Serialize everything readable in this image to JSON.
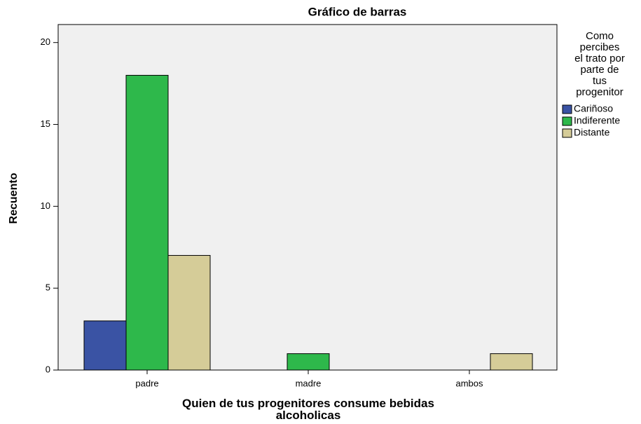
{
  "chart_data": {
    "type": "bar",
    "title": "Gráfico de barras",
    "x_label": "Quien de tus progenitores consume bebidas alcoholicas",
    "y_label": "Recuento",
    "categories": [
      "padre",
      "madre",
      "ambos"
    ],
    "series": [
      {
        "name": "Cariñoso",
        "color": "#3a53a4",
        "values": [
          3,
          0,
          0
        ]
      },
      {
        "name": "Indiferente",
        "color": "#2eb84b",
        "values": [
          18,
          1,
          0
        ]
      },
      {
        "name": "Distante",
        "color": "#d5cc98",
        "values": [
          7,
          0,
          1
        ]
      }
    ],
    "legend_title": [
      "Como",
      "percibes",
      "el trato por",
      "parte de",
      "tus",
      "progenitor"
    ],
    "ylim": [
      0,
      21.1
    ],
    "yticks": [
      0,
      5,
      10,
      15,
      20
    ],
    "grid": false,
    "legend": "right"
  }
}
